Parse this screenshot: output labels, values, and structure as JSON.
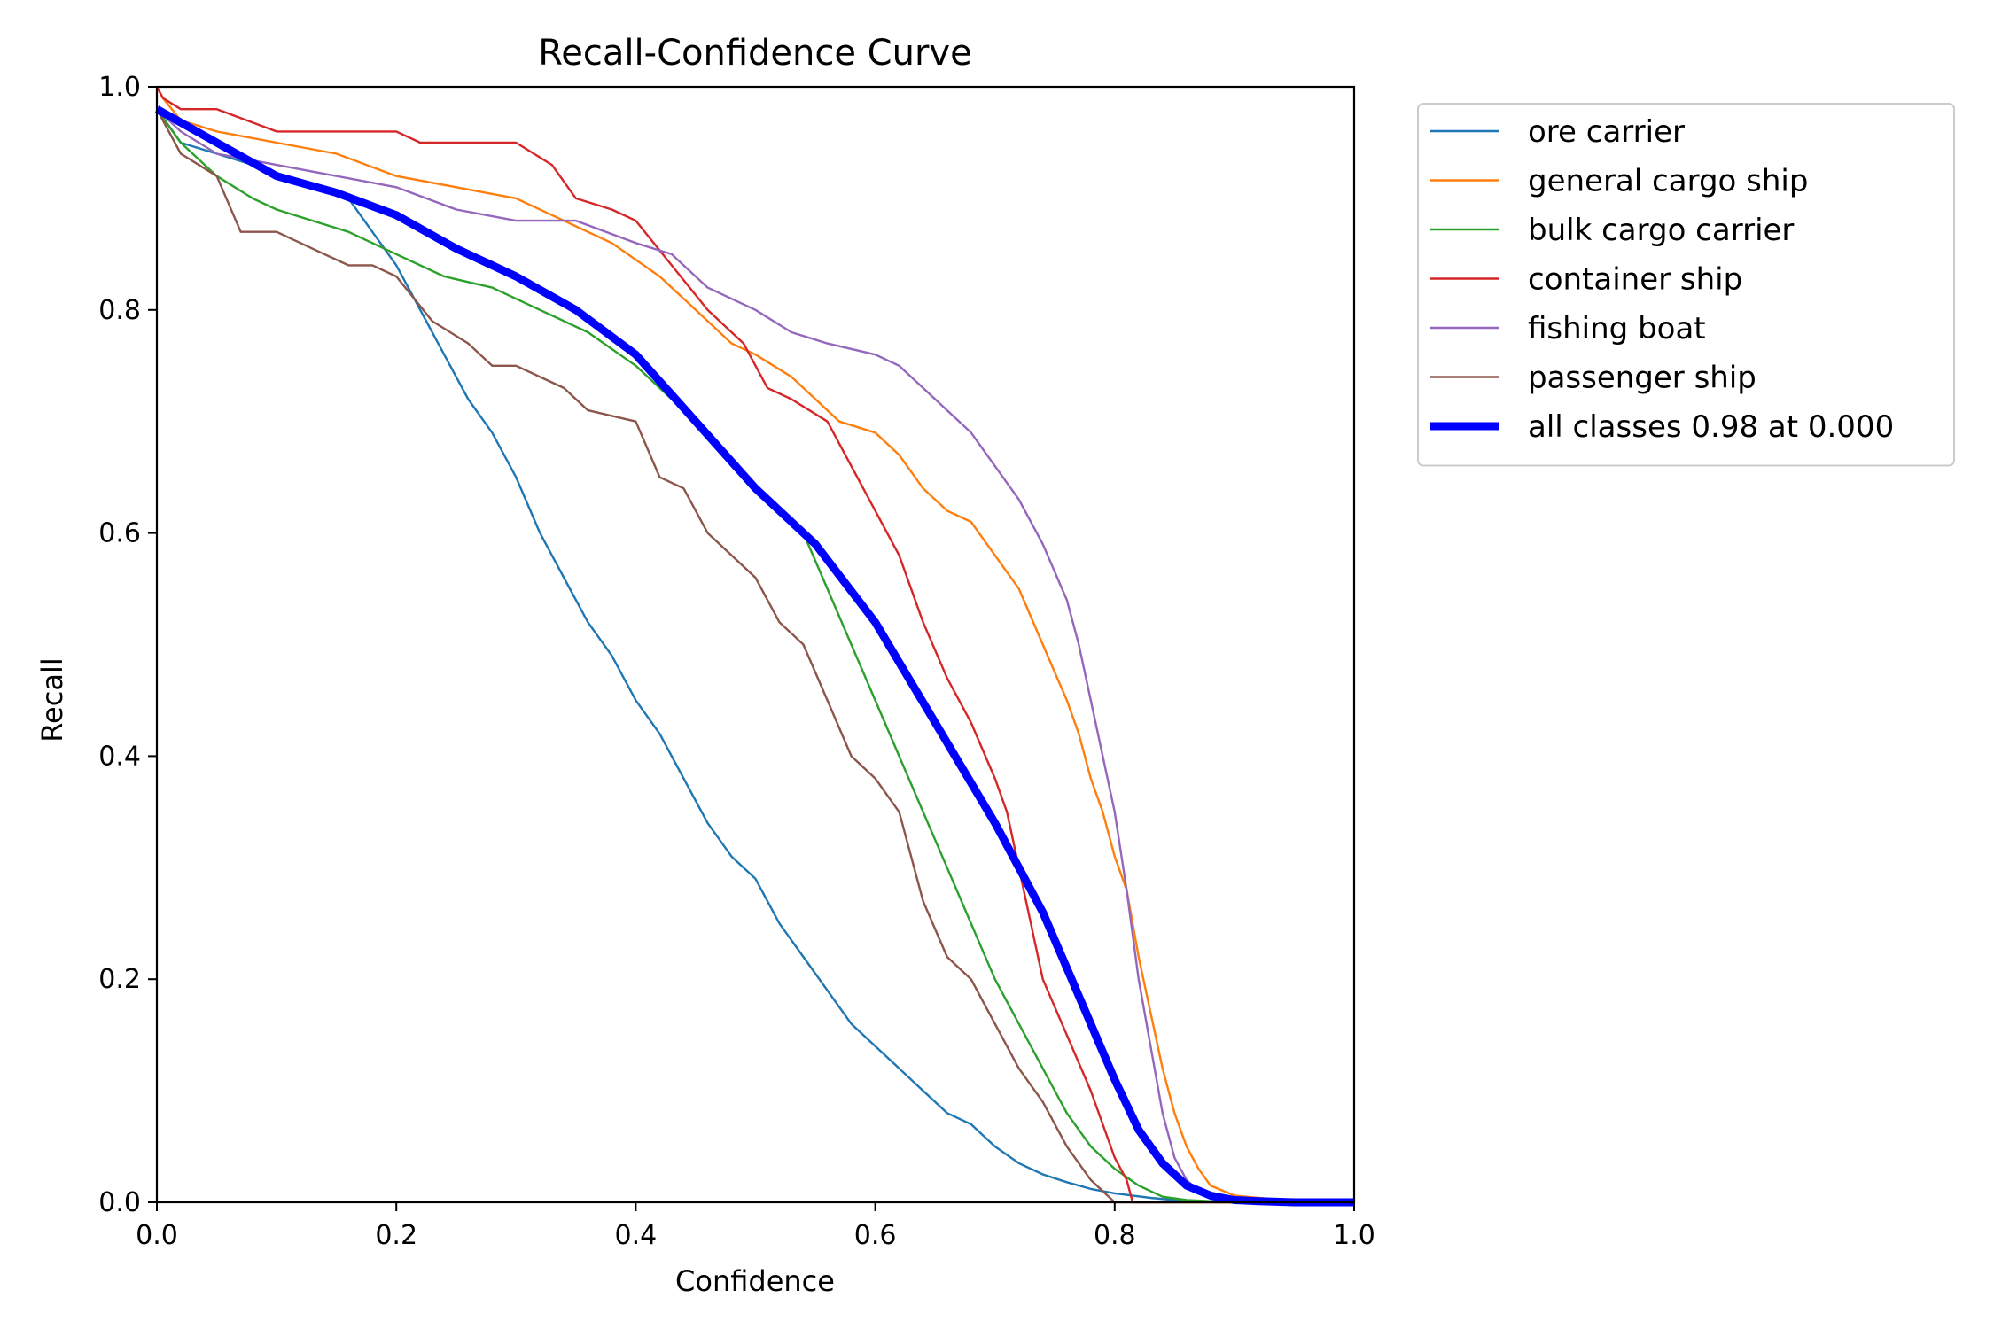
{
  "chart_data": {
    "type": "line",
    "title": "Recall-Confidence Curve",
    "xlabel": "Confidence",
    "ylabel": "Recall",
    "xlim": [
      0,
      1
    ],
    "ylim": [
      0,
      1
    ],
    "grid": false,
    "legend_position": "outside-top-right",
    "x_ticks": [
      0.0,
      0.2,
      0.4,
      0.6,
      0.8,
      1.0
    ],
    "y_ticks": [
      0.0,
      0.2,
      0.4,
      0.6,
      0.8,
      1.0
    ],
    "x_tick_labels": [
      "0.0",
      "0.2",
      "0.4",
      "0.6",
      "0.8",
      "1.0"
    ],
    "y_tick_labels": [
      "0.0",
      "0.2",
      "0.4",
      "0.6",
      "0.8",
      "1.0"
    ],
    "series": [
      {
        "name": "ore carrier",
        "color": "#1f77b4",
        "x": [
          0.0,
          0.02,
          0.05,
          0.08,
          0.1,
          0.13,
          0.16,
          0.18,
          0.2,
          0.22,
          0.24,
          0.26,
          0.28,
          0.3,
          0.32,
          0.34,
          0.36,
          0.38,
          0.4,
          0.42,
          0.44,
          0.46,
          0.48,
          0.5,
          0.52,
          0.54,
          0.56,
          0.58,
          0.6,
          0.62,
          0.64,
          0.66,
          0.68,
          0.7,
          0.72,
          0.74,
          0.76,
          0.78,
          0.8,
          0.83,
          0.85,
          0.9,
          1.0
        ],
        "y": [
          0.98,
          0.95,
          0.94,
          0.93,
          0.92,
          0.91,
          0.9,
          0.87,
          0.84,
          0.8,
          0.76,
          0.72,
          0.69,
          0.65,
          0.6,
          0.56,
          0.52,
          0.49,
          0.45,
          0.42,
          0.38,
          0.34,
          0.31,
          0.29,
          0.25,
          0.22,
          0.19,
          0.16,
          0.14,
          0.12,
          0.1,
          0.08,
          0.07,
          0.05,
          0.035,
          0.025,
          0.018,
          0.012,
          0.008,
          0.004,
          0.002,
          0.0,
          0.0
        ]
      },
      {
        "name": "general cargo ship",
        "color": "#ff7f0e",
        "x": [
          0.0,
          0.005,
          0.02,
          0.05,
          0.1,
          0.15,
          0.2,
          0.25,
          0.3,
          0.34,
          0.38,
          0.42,
          0.45,
          0.48,
          0.5,
          0.53,
          0.55,
          0.57,
          0.6,
          0.62,
          0.64,
          0.66,
          0.68,
          0.7,
          0.72,
          0.74,
          0.76,
          0.77,
          0.78,
          0.79,
          0.8,
          0.81,
          0.82,
          0.83,
          0.84,
          0.85,
          0.86,
          0.87,
          0.88,
          0.9,
          0.95,
          1.0
        ],
        "y": [
          1.0,
          0.99,
          0.97,
          0.96,
          0.95,
          0.94,
          0.92,
          0.91,
          0.9,
          0.88,
          0.86,
          0.83,
          0.8,
          0.77,
          0.76,
          0.74,
          0.72,
          0.7,
          0.69,
          0.67,
          0.64,
          0.62,
          0.61,
          0.58,
          0.55,
          0.5,
          0.45,
          0.42,
          0.38,
          0.35,
          0.31,
          0.28,
          0.22,
          0.17,
          0.12,
          0.08,
          0.05,
          0.03,
          0.015,
          0.006,
          0.001,
          0.0
        ]
      },
      {
        "name": "bulk cargo carrier",
        "color": "#2ca02c",
        "x": [
          0.0,
          0.02,
          0.05,
          0.08,
          0.1,
          0.13,
          0.16,
          0.18,
          0.2,
          0.24,
          0.28,
          0.32,
          0.36,
          0.4,
          0.43,
          0.46,
          0.48,
          0.5,
          0.52,
          0.54,
          0.56,
          0.58,
          0.6,
          0.62,
          0.64,
          0.66,
          0.68,
          0.7,
          0.72,
          0.74,
          0.76,
          0.78,
          0.8,
          0.82,
          0.84,
          0.86,
          0.9,
          1.0
        ],
        "y": [
          0.98,
          0.95,
          0.92,
          0.9,
          0.89,
          0.88,
          0.87,
          0.86,
          0.85,
          0.83,
          0.82,
          0.8,
          0.78,
          0.75,
          0.72,
          0.69,
          0.66,
          0.64,
          0.62,
          0.6,
          0.55,
          0.5,
          0.45,
          0.4,
          0.35,
          0.3,
          0.25,
          0.2,
          0.16,
          0.12,
          0.08,
          0.05,
          0.03,
          0.015,
          0.005,
          0.002,
          0.0,
          0.0
        ]
      },
      {
        "name": "container ship",
        "color": "#d62728",
        "x": [
          0.0,
          0.005,
          0.02,
          0.05,
          0.1,
          0.15,
          0.2,
          0.22,
          0.25,
          0.3,
          0.33,
          0.35,
          0.38,
          0.4,
          0.43,
          0.46,
          0.49,
          0.51,
          0.53,
          0.56,
          0.58,
          0.6,
          0.62,
          0.64,
          0.66,
          0.68,
          0.7,
          0.71,
          0.72,
          0.73,
          0.74,
          0.76,
          0.78,
          0.79,
          0.8,
          0.81,
          0.815,
          0.82,
          1.0
        ],
        "y": [
          1.0,
          0.99,
          0.98,
          0.98,
          0.96,
          0.96,
          0.96,
          0.95,
          0.95,
          0.95,
          0.93,
          0.9,
          0.89,
          0.88,
          0.84,
          0.8,
          0.77,
          0.73,
          0.72,
          0.7,
          0.66,
          0.62,
          0.58,
          0.52,
          0.47,
          0.43,
          0.38,
          0.35,
          0.3,
          0.25,
          0.2,
          0.15,
          0.1,
          0.07,
          0.04,
          0.02,
          0.0,
          0.0,
          0.0
        ]
      },
      {
        "name": "fishing boat",
        "color": "#9467bd",
        "x": [
          0.0,
          0.02,
          0.05,
          0.1,
          0.15,
          0.2,
          0.25,
          0.3,
          0.35,
          0.4,
          0.43,
          0.46,
          0.5,
          0.53,
          0.56,
          0.6,
          0.62,
          0.64,
          0.66,
          0.68,
          0.7,
          0.72,
          0.74,
          0.76,
          0.77,
          0.78,
          0.79,
          0.8,
          0.81,
          0.82,
          0.83,
          0.84,
          0.85,
          0.86,
          0.87,
          0.88,
          0.9,
          0.95,
          1.0
        ],
        "y": [
          0.98,
          0.96,
          0.94,
          0.93,
          0.92,
          0.91,
          0.89,
          0.88,
          0.88,
          0.86,
          0.85,
          0.82,
          0.8,
          0.78,
          0.77,
          0.76,
          0.75,
          0.73,
          0.71,
          0.69,
          0.66,
          0.63,
          0.59,
          0.54,
          0.5,
          0.45,
          0.4,
          0.35,
          0.28,
          0.2,
          0.14,
          0.08,
          0.04,
          0.02,
          0.01,
          0.005,
          0.002,
          0.0,
          0.0
        ]
      },
      {
        "name": "passenger ship",
        "color": "#8c564b",
        "x": [
          0.0,
          0.02,
          0.05,
          0.07,
          0.1,
          0.14,
          0.16,
          0.18,
          0.2,
          0.23,
          0.26,
          0.28,
          0.3,
          0.34,
          0.36,
          0.4,
          0.42,
          0.44,
          0.46,
          0.48,
          0.5,
          0.52,
          0.54,
          0.56,
          0.58,
          0.6,
          0.62,
          0.64,
          0.66,
          0.68,
          0.7,
          0.72,
          0.74,
          0.76,
          0.78,
          0.79,
          0.8,
          1.0
        ],
        "y": [
          0.98,
          0.94,
          0.92,
          0.87,
          0.87,
          0.85,
          0.84,
          0.84,
          0.83,
          0.79,
          0.77,
          0.75,
          0.75,
          0.73,
          0.71,
          0.7,
          0.65,
          0.64,
          0.6,
          0.58,
          0.56,
          0.52,
          0.5,
          0.45,
          0.4,
          0.38,
          0.35,
          0.27,
          0.22,
          0.2,
          0.16,
          0.12,
          0.09,
          0.05,
          0.02,
          0.01,
          0.0,
          0.0
        ]
      },
      {
        "name": "all classes 0.98 at 0.000",
        "color": "#0000ff",
        "bold": true,
        "x": [
          0.0,
          0.05,
          0.1,
          0.15,
          0.2,
          0.25,
          0.3,
          0.35,
          0.4,
          0.45,
          0.5,
          0.55,
          0.6,
          0.65,
          0.7,
          0.72,
          0.74,
          0.76,
          0.78,
          0.8,
          0.82,
          0.84,
          0.86,
          0.88,
          0.9,
          0.92,
          0.95,
          1.0
        ],
        "y": [
          0.98,
          0.95,
          0.92,
          0.905,
          0.885,
          0.855,
          0.83,
          0.8,
          0.76,
          0.7,
          0.64,
          0.59,
          0.52,
          0.43,
          0.34,
          0.3,
          0.26,
          0.21,
          0.16,
          0.11,
          0.065,
          0.035,
          0.015,
          0.006,
          0.002,
          0.001,
          0.0,
          0.0
        ]
      }
    ]
  }
}
